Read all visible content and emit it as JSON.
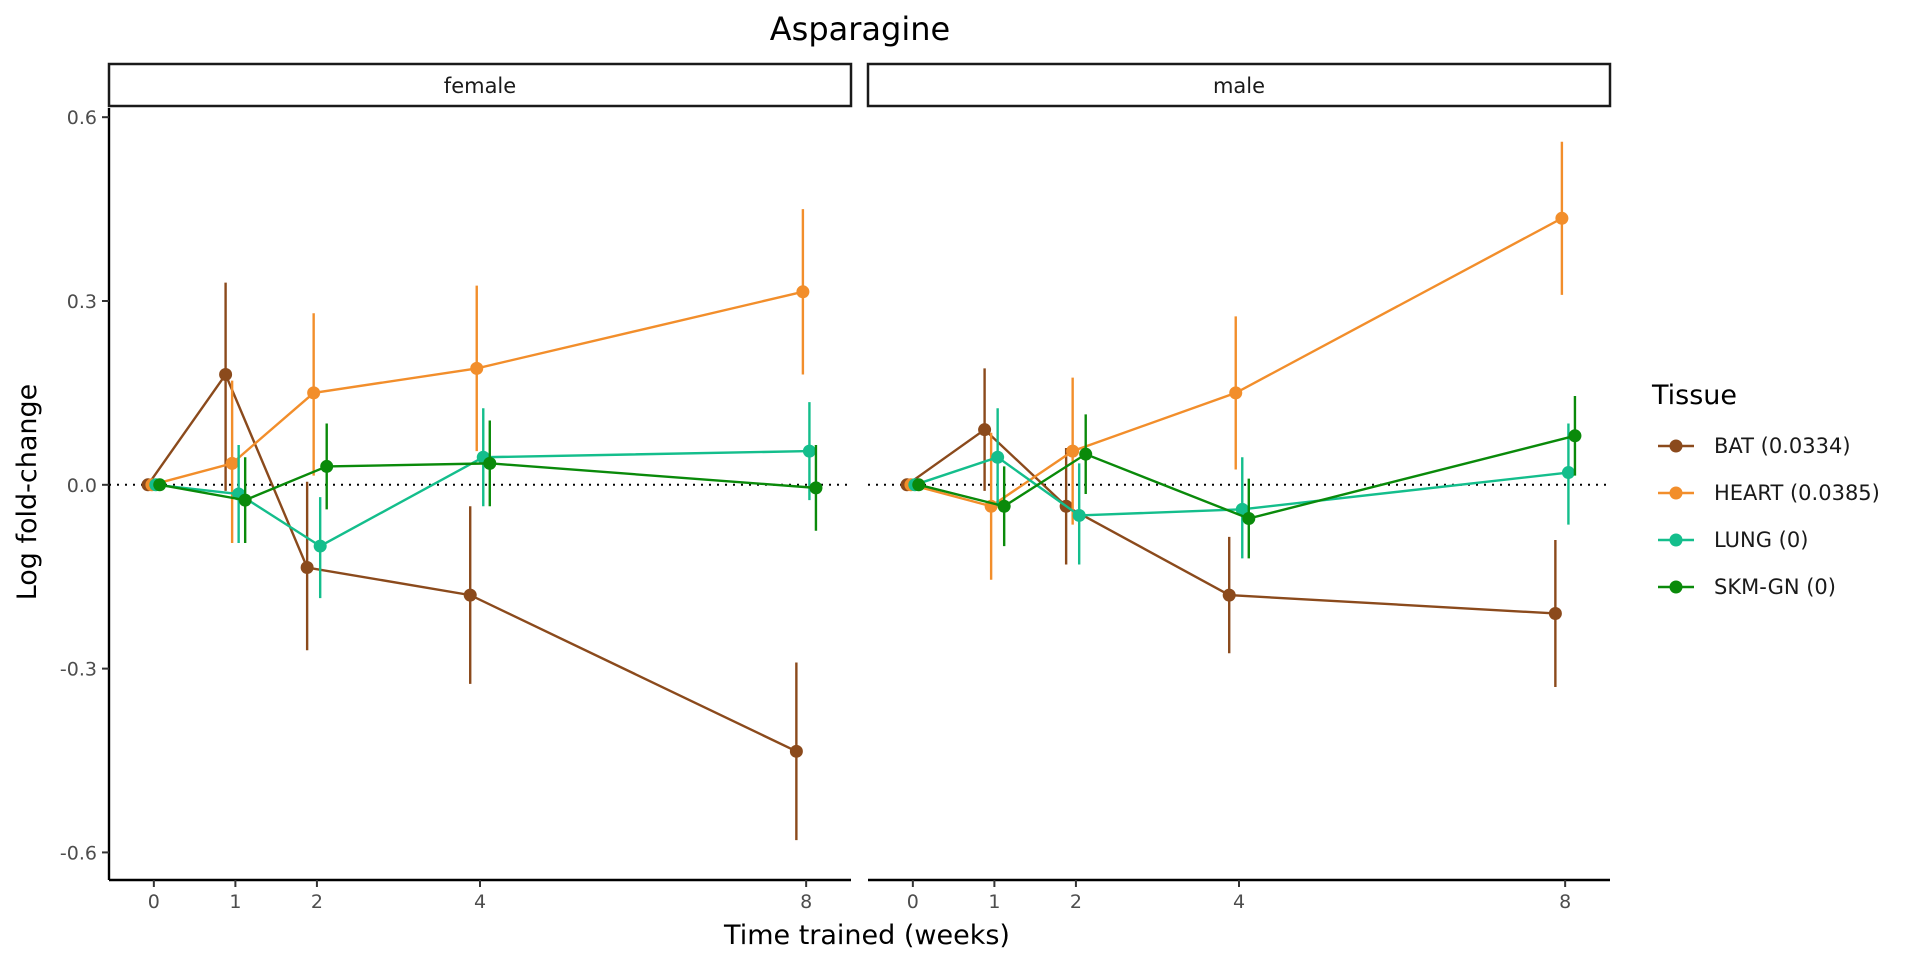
{
  "chart_data": {
    "type": "line",
    "title": "Asparagine",
    "xlabel": "Time trained (weeks)",
    "ylabel": "Log fold-change",
    "x_ticks": [
      0,
      1,
      2,
      4,
      8
    ],
    "x_tick_labels": [
      "0",
      "1",
      "2",
      "4",
      "8"
    ],
    "y_ticks": [
      -0.6,
      -0.3,
      0.0,
      0.3,
      0.6
    ],
    "y_tick_labels": [
      "-0.6",
      "-0.3",
      "0.0",
      "0.3",
      "0.6"
    ],
    "ylim": [
      -0.645,
      0.615
    ],
    "xlim": [
      -0.55,
      8.55
    ],
    "reference_line": {
      "y": 0,
      "style": "dotted",
      "color": "#000000"
    },
    "grid": false,
    "legend": {
      "title": "Tissue",
      "placement": "right",
      "items": [
        {
          "label": "BAT (0.0334)",
          "color": "#8B4A1C"
        },
        {
          "label": "HEART (0.0385)",
          "color": "#F28E2B"
        },
        {
          "label": "LUNG (0)",
          "color": "#14BE8C"
        },
        {
          "label": "SKM-GN (0)",
          "color": "#0A8A0A"
        }
      ]
    },
    "panels": [
      {
        "strip": "female",
        "series": [
          {
            "name": "BAT (0.0334)",
            "color": "#8B4A1C",
            "dodge": -0.12,
            "x": [
              0,
              1,
              2,
              4,
              8
            ],
            "y": [
              0.0,
              0.18,
              -0.135,
              -0.18,
              -0.435
            ],
            "lower": [
              0.0,
              -0.01,
              -0.27,
              -0.325,
              -0.58
            ],
            "upper": [
              0.0,
              0.33,
              0.005,
              -0.035,
              -0.29
            ]
          },
          {
            "name": "HEART (0.0385)",
            "color": "#F28E2B",
            "dodge": -0.04,
            "x": [
              0,
              1,
              2,
              4,
              8
            ],
            "y": [
              0.0,
              0.035,
              0.15,
              0.19,
              0.315
            ],
            "lower": [
              0.0,
              -0.095,
              0.015,
              0.055,
              0.18
            ],
            "upper": [
              0.0,
              0.17,
              0.28,
              0.325,
              0.45
            ]
          },
          {
            "name": "LUNG (0)",
            "color": "#14BE8C",
            "dodge": 0.04,
            "x": [
              0,
              1,
              2,
              4,
              8
            ],
            "y": [
              0.0,
              -0.015,
              -0.1,
              0.045,
              0.055
            ],
            "lower": [
              0.0,
              -0.095,
              -0.185,
              -0.035,
              -0.025
            ],
            "upper": [
              0.0,
              0.065,
              -0.02,
              0.125,
              0.135
            ]
          },
          {
            "name": "SKM-GN (0)",
            "color": "#0A8A0A",
            "dodge": 0.12,
            "x": [
              0,
              1,
              2,
              4,
              8
            ],
            "y": [
              0.0,
              -0.025,
              0.03,
              0.035,
              -0.005
            ],
            "lower": [
              0.0,
              -0.095,
              -0.04,
              -0.035,
              -0.075
            ],
            "upper": [
              0.0,
              0.045,
              0.1,
              0.105,
              0.065
            ]
          }
        ]
      },
      {
        "strip": "male",
        "series": [
          {
            "name": "BAT (0.0334)",
            "color": "#8B4A1C",
            "dodge": -0.12,
            "x": [
              0,
              1,
              2,
              4,
              8
            ],
            "y": [
              0.0,
              0.09,
              -0.035,
              -0.18,
              -0.21
            ],
            "lower": [
              0.0,
              -0.01,
              -0.13,
              -0.275,
              -0.33
            ],
            "upper": [
              0.0,
              0.19,
              0.06,
              -0.085,
              -0.09
            ]
          },
          {
            "name": "HEART (0.0385)",
            "color": "#F28E2B",
            "dodge": -0.04,
            "x": [
              0,
              1,
              2,
              4,
              8
            ],
            "y": [
              0.0,
              -0.035,
              0.055,
              0.15,
              0.435
            ],
            "lower": [
              0.0,
              -0.155,
              -0.065,
              0.025,
              0.31
            ],
            "upper": [
              0.0,
              0.085,
              0.175,
              0.275,
              0.56
            ]
          },
          {
            "name": "LUNG (0)",
            "color": "#14BE8C",
            "dodge": 0.04,
            "x": [
              0,
              1,
              2,
              4,
              8
            ],
            "y": [
              0.0,
              0.045,
              -0.05,
              -0.04,
              0.02
            ],
            "lower": [
              0.0,
              -0.035,
              -0.13,
              -0.12,
              -0.065
            ],
            "upper": [
              0.0,
              0.125,
              0.035,
              0.045,
              0.1
            ]
          },
          {
            "name": "SKM-GN (0)",
            "color": "#0A8A0A",
            "dodge": 0.12,
            "x": [
              0,
              1,
              2,
              4,
              8
            ],
            "y": [
              0.0,
              -0.035,
              0.05,
              -0.055,
              0.08
            ],
            "lower": [
              0.0,
              -0.1,
              -0.015,
              -0.12,
              0.015
            ],
            "upper": [
              0.0,
              0.03,
              0.115,
              0.01,
              0.145
            ]
          }
        ]
      }
    ]
  }
}
